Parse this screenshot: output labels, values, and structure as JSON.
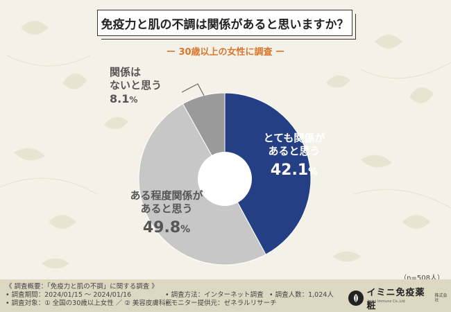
{
  "title": "免疫力と肌の不調は関係があると思いますか？",
  "subtitle": "ー 30歳以上の女性に調査 ー",
  "sample_note": "（n=508人）",
  "chart_data": {
    "type": "pie",
    "donut": true,
    "start": "12 o'clock",
    "direction": "clockwise",
    "categories": [
      "とても関係があると思う",
      "ある程度関係があると思う",
      "関係はないと思う"
    ],
    "values": [
      42.1,
      49.8,
      8.1
    ],
    "unit": "%",
    "colors": [
      "#253f85",
      "#c7c7c7",
      "#9a9a9a"
    ],
    "labels": [
      {
        "line1": "とても関係が",
        "line2": "あると思う",
        "pct": "42.1",
        "pct_unit": "%"
      },
      {
        "line1": "ある程度関係が",
        "line2": "あると思う",
        "pct": "49.8",
        "pct_unit": "%"
      },
      {
        "line1": "関係は",
        "line2": "ないと思う",
        "pct": "8.1",
        "pct_unit": "%"
      }
    ]
  },
  "footer": {
    "lines_left": [
      "《 調査概要：「免疫力と肌の不調」に関する調査 》",
      "• 調査期間：2024/01/15 ～ 2024/01/16",
      "• 調査対象：① 全国の30歳以上女性 ／ ② 美容皮膚科医"
    ],
    "lines_mid": [
      "• 調査方法：インターネット調査",
      "• モニター提供元：ゼネラルリサーチ"
    ],
    "lines_right": [
      "• 調査人数：1,024人"
    ],
    "logo_name": "イミニ免疫薬粧",
    "logo_tag": "株式会社",
    "logo_sub": "Imini Immuno Co.,Ltd"
  }
}
